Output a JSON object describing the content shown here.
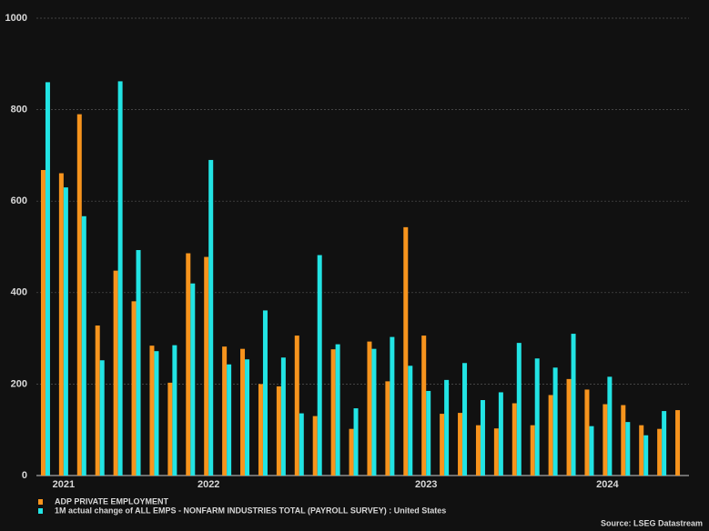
{
  "chart_data": {
    "type": "bar",
    "categories": [
      null,
      "2021",
      null,
      null,
      null,
      null,
      null,
      null,
      null,
      "2022",
      null,
      null,
      null,
      null,
      null,
      null,
      null,
      null,
      null,
      null,
      null,
      "2023",
      null,
      null,
      null,
      null,
      null,
      null,
      null,
      null,
      null,
      "2024",
      null,
      null,
      null,
      null
    ],
    "series": [
      {
        "name": "ADP PRIVATE EMPLOYMENT",
        "color": "#f7941d",
        "values": [
          668,
          661,
          790,
          328,
          448,
          381,
          284,
          203,
          486,
          478,
          282,
          277,
          200,
          195,
          306,
          130,
          276,
          102,
          293,
          206,
          543,
          306,
          135,
          137,
          110,
          103,
          158,
          110,
          176,
          211,
          188,
          156,
          154,
          110,
          102,
          143
        ]
      },
      {
        "name": "1M actual change of ALL EMPS - NONFARM INDUSTRIES TOTAL (PAYROLL SURVEY) : United States",
        "color": "#22e4e4",
        "values": [
          860,
          630,
          567,
          252,
          862,
          493,
          272,
          285,
          420,
          690,
          243,
          254,
          361,
          258,
          136,
          482,
          287,
          147,
          277,
          303,
          240,
          185,
          209,
          246,
          165,
          182,
          290,
          256,
          236,
          310,
          108,
          216,
          117,
          88,
          141,
          null
        ]
      }
    ],
    "ylim": [
      0,
      1000
    ],
    "yticks": [
      0,
      200,
      400,
      600,
      800,
      1000
    ],
    "grid": true,
    "source": "Source: LSEG Datastream"
  }
}
